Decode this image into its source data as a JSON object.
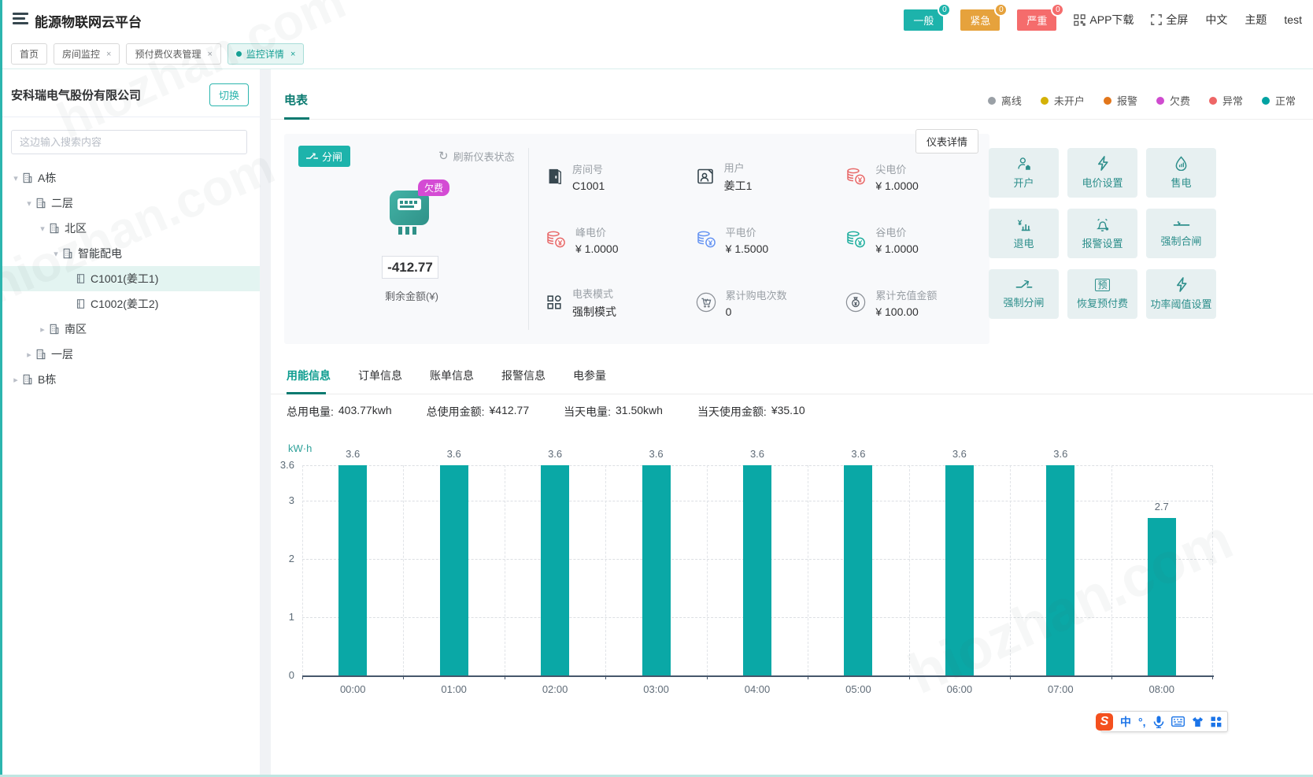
{
  "header": {
    "title": "能源物联网云平台",
    "alarms": [
      {
        "label": "一般",
        "count": "0",
        "color": "#1db3ab"
      },
      {
        "label": "紧急",
        "count": "0",
        "color": "#e6a23c"
      },
      {
        "label": "严重",
        "count": "0",
        "color": "#f56c6c"
      }
    ],
    "links": [
      {
        "label": "APP下载",
        "icon": "qr-icon"
      },
      {
        "label": "全屏",
        "icon": "fullscreen-icon"
      },
      {
        "label": "中文",
        "icon": ""
      },
      {
        "label": "主题",
        "icon": ""
      },
      {
        "label": "test",
        "icon": ""
      }
    ]
  },
  "breadcrumbs": [
    {
      "label": "首页",
      "closable": false,
      "active": false
    },
    {
      "label": "房间监控",
      "closable": true,
      "active": false
    },
    {
      "label": "预付费仪表管理",
      "closable": true,
      "active": false
    },
    {
      "label": "监控详情",
      "closable": true,
      "active": true
    }
  ],
  "sidebar": {
    "company": "安科瑞电气股份有限公司",
    "switch_label": "切换",
    "search_placeholder": "这边输入搜索内容",
    "tree": [
      {
        "label": "A栋",
        "depth": 0,
        "caret": "down",
        "icon": "building-icon",
        "selected": false
      },
      {
        "label": "二层",
        "depth": 1,
        "caret": "down",
        "icon": "building-icon",
        "selected": false
      },
      {
        "label": "北区",
        "depth": 2,
        "caret": "down",
        "icon": "building-icon",
        "selected": false
      },
      {
        "label": "智能配电",
        "depth": 3,
        "caret": "down",
        "icon": "building-icon",
        "selected": false
      },
      {
        "label": "C1001(姜工1)",
        "depth": 4,
        "caret": "none",
        "icon": "door-icon",
        "selected": true
      },
      {
        "label": "C1002(姜工2)",
        "depth": 4,
        "caret": "none",
        "icon": "door-icon",
        "selected": false
      },
      {
        "label": "南区",
        "depth": 2,
        "caret": "right",
        "icon": "building-icon",
        "selected": false
      },
      {
        "label": "一层",
        "depth": 1,
        "caret": "right",
        "icon": "building-icon",
        "selected": false
      },
      {
        "label": "B栋",
        "depth": 0,
        "caret": "right",
        "icon": "building-icon",
        "selected": false
      }
    ]
  },
  "meter": {
    "section_tab": "电表",
    "legend": [
      {
        "label": "离线",
        "color": "#9aa0a6"
      },
      {
        "label": "未开户",
        "color": "#d4b106"
      },
      {
        "label": "报警",
        "color": "#e2761b"
      },
      {
        "label": "欠费",
        "color": "#cf4bcf"
      },
      {
        "label": "异常",
        "color": "#ee6666"
      },
      {
        "label": "正常",
        "color": "#00a2a2"
      }
    ],
    "switch_state": "分闸",
    "refresh_label": "刷新仪表状态",
    "status_badge": "欠费",
    "balance": "-412.77",
    "balance_label": "剩余金额(¥)",
    "detail_button": "仪表详情",
    "info": [
      {
        "label": "房间号",
        "value": "C1001",
        "icon": "room-door-icon",
        "color": "#37474f"
      },
      {
        "label": "用户",
        "value": "姜工1",
        "icon": "user-card-icon",
        "color": "#37474f"
      },
      {
        "label": "尖电价",
        "value": "¥ 1.0000",
        "icon": "coins-icon",
        "color": "#e86a6a"
      },
      {
        "label": "峰电价",
        "value": "¥ 1.0000",
        "icon": "coins-icon",
        "color": "#e86a6a"
      },
      {
        "label": "平电价",
        "value": "¥ 1.5000",
        "icon": "coins-icon",
        "color": "#6694f2"
      },
      {
        "label": "谷电价",
        "value": "¥ 1.0000",
        "icon": "coins-icon",
        "color": "#1fae9e"
      },
      {
        "label": "电表模式",
        "value": "强制模式",
        "icon": "mode-icon",
        "color": "#37474f"
      },
      {
        "label": "累计购电次数",
        "value": "0",
        "icon": "cart-icon",
        "color": "#6b7077"
      },
      {
        "label": "累计充值金额",
        "value": "¥ 100.00",
        "icon": "moneybag-icon",
        "color": "#37474f"
      }
    ],
    "actions": [
      {
        "label": "开户",
        "icon": "open-account-icon"
      },
      {
        "label": "电价设置",
        "icon": "bolt-icon"
      },
      {
        "label": "售电",
        "icon": "sell-icon"
      },
      {
        "label": "退电",
        "icon": "refund-icon"
      },
      {
        "label": "报警设置",
        "icon": "alarm-icon"
      },
      {
        "label": "强制合闸",
        "icon": "switch-closed-icon"
      },
      {
        "label": "强制分闸",
        "icon": "switch-open-icon"
      },
      {
        "label": "恢复预付费",
        "icon": "restore-prepaid-icon"
      },
      {
        "label": "功率阈值设置",
        "icon": "bolt-icon"
      }
    ]
  },
  "info_tabs": [
    {
      "label": "用能信息",
      "active": true
    },
    {
      "label": "订单信息",
      "active": false
    },
    {
      "label": "账单信息",
      "active": false
    },
    {
      "label": "报警信息",
      "active": false
    },
    {
      "label": "电参量",
      "active": false
    }
  ],
  "stats": [
    {
      "label": "总用电量:",
      "value": "403.77kwh"
    },
    {
      "label": "总使用金额:",
      "value": "¥412.77"
    },
    {
      "label": "当天电量:",
      "value": "31.50kwh"
    },
    {
      "label": "当天使用金额:",
      "value": "¥35.10"
    }
  ],
  "chart_data": {
    "type": "bar",
    "title": "",
    "ylabel": "kW·h",
    "xlabel": "",
    "categories": [
      "00:00",
      "01:00",
      "02:00",
      "03:00",
      "04:00",
      "05:00",
      "06:00",
      "07:00",
      "08:00"
    ],
    "values": [
      3.6,
      3.6,
      3.6,
      3.6,
      3.6,
      3.6,
      3.6,
      3.6,
      2.7
    ],
    "yticks": [
      0,
      1,
      2,
      3,
      3.6
    ],
    "ylim": [
      0,
      3.6
    ],
    "bar_color": "#0aa8a6",
    "grid": true,
    "value_labels": true,
    "legend_position": "none"
  },
  "watermark": "hiozhan.com",
  "ime": {
    "logo": "S",
    "lang_label": "中",
    "punct_label": "°,",
    "icons": [
      "mic-icon",
      "keyboard-icon",
      "skin-icon",
      "grid-icon"
    ]
  }
}
